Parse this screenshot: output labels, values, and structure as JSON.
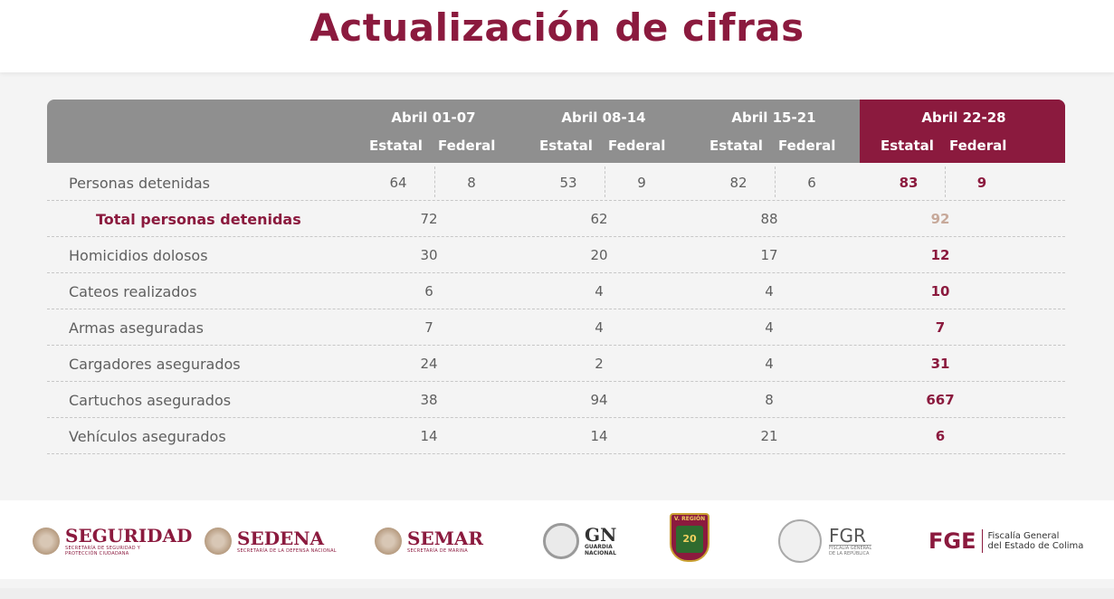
{
  "title": "Actualización de cifras",
  "colors": {
    "accent": "#8b1a3e",
    "header_gray": "#8f8f8f",
    "text_gray": "#5f5f5f"
  },
  "table": {
    "periods": [
      "Abril 01-07",
      "Abril 08-14",
      "Abril 15-21",
      "Abril 22-28"
    ],
    "sub_estatal": "Estatal",
    "sub_federal": "Federal",
    "personas": {
      "label": "Personas detenidas",
      "values": [
        {
          "estatal": "64",
          "federal": "8"
        },
        {
          "estatal": "53",
          "federal": "9"
        },
        {
          "estatal": "82",
          "federal": "6"
        },
        {
          "estatal": "83",
          "federal": "9"
        }
      ]
    },
    "rows": [
      {
        "label": "Total personas detenidas",
        "values": [
          "72",
          "62",
          "88",
          "92"
        ]
      },
      {
        "label": "Homicidios dolosos",
        "values": [
          "30",
          "20",
          "17",
          "12"
        ]
      },
      {
        "label": "Cateos realizados",
        "values": [
          "6",
          "4",
          "4",
          "10"
        ]
      },
      {
        "label": "Armas aseguradas",
        "values": [
          "7",
          "4",
          "4",
          "7"
        ]
      },
      {
        "label": "Cargadores asegurados",
        "values": [
          "24",
          "2",
          "4",
          "31"
        ]
      },
      {
        "label": "Cartuchos asegurados",
        "values": [
          "38",
          "94",
          "8",
          "667"
        ]
      },
      {
        "label": "Vehículos asegurados",
        "values": [
          "14",
          "14",
          "21",
          "6"
        ]
      }
    ]
  },
  "logos": {
    "seguridad": {
      "name": "SEGURIDAD",
      "sub": "SECRETARÍA DE SEGURIDAD Y PROTECCIÓN CIUDADANA"
    },
    "sedena": {
      "name": "SEDENA",
      "sub": "SECRETARÍA DE LA DEFENSA NACIONAL"
    },
    "semar": {
      "name": "SEMAR",
      "sub": "SECRETARÍA DE MARINA"
    },
    "gn": {
      "name": "GN",
      "sub1": "GUARDIA",
      "sub2": "NACIONAL"
    },
    "region": {
      "top": "V. REGIÓN",
      "num": "20"
    },
    "fgr": {
      "name": "FGR",
      "sub1": "FISCALÍA GENERAL",
      "sub2": "DE LA REPÚBLICA"
    },
    "fge": {
      "name": "FGE",
      "sub1": "Fiscalía General",
      "sub2": "del Estado de Colima"
    }
  }
}
